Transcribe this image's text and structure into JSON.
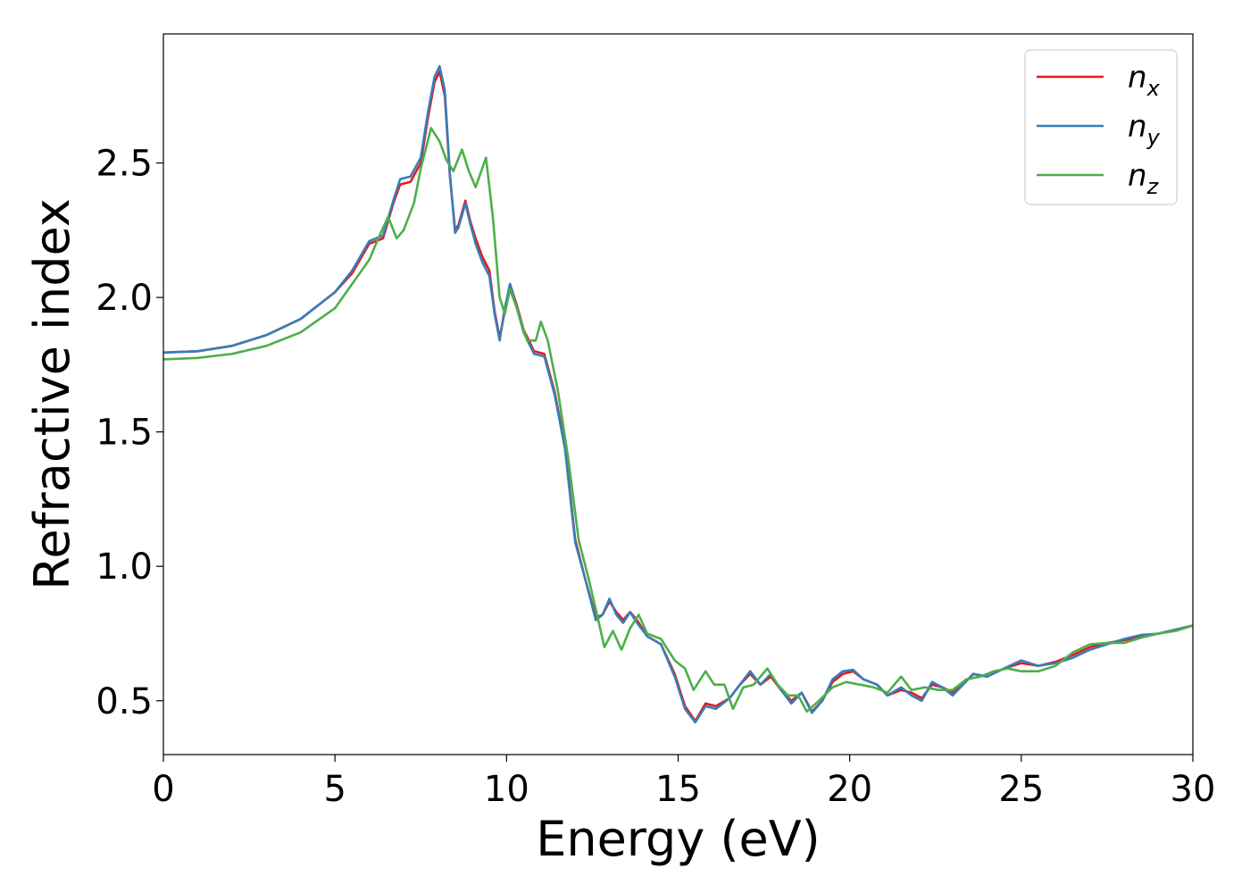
{
  "chart_data": {
    "type": "line",
    "xlabel": "Energy (eV)",
    "ylabel": "Refractive index",
    "xlim": [
      0,
      30
    ],
    "ylim": [
      0.3,
      2.98
    ],
    "xticks": [
      0,
      5,
      10,
      15,
      20,
      25,
      30
    ],
    "xtick_labels": [
      "0",
      "5",
      "10",
      "15",
      "20",
      "25",
      "30"
    ],
    "yticks": [
      0.5,
      1.0,
      1.5,
      2.0,
      2.5
    ],
    "ytick_labels": [
      "0.5",
      "1.0",
      "1.5",
      "2.0",
      "2.5"
    ],
    "grid": false,
    "legend_position": "top-right",
    "series": [
      {
        "name": "n",
        "subscript": "x",
        "color": "#e41a1c",
        "points": [
          [
            0,
            1.795
          ],
          [
            1,
            1.8
          ],
          [
            2,
            1.82
          ],
          [
            3,
            1.86
          ],
          [
            4,
            1.92
          ],
          [
            5,
            2.02
          ],
          [
            5.5,
            2.09
          ],
          [
            6,
            2.2
          ],
          [
            6.4,
            2.22
          ],
          [
            6.7,
            2.35
          ],
          [
            6.9,
            2.42
          ],
          [
            7.2,
            2.43
          ],
          [
            7.5,
            2.5
          ],
          [
            7.7,
            2.66
          ],
          [
            7.9,
            2.8
          ],
          [
            8.05,
            2.84
          ],
          [
            8.2,
            2.75
          ],
          [
            8.35,
            2.45
          ],
          [
            8.5,
            2.25
          ],
          [
            8.6,
            2.27
          ],
          [
            8.8,
            2.36
          ],
          [
            8.95,
            2.28
          ],
          [
            9.1,
            2.22
          ],
          [
            9.3,
            2.15
          ],
          [
            9.5,
            2.1
          ],
          [
            9.65,
            1.95
          ],
          [
            9.8,
            1.85
          ],
          [
            9.95,
            1.95
          ],
          [
            10.1,
            2.05
          ],
          [
            10.3,
            1.97
          ],
          [
            10.5,
            1.88
          ],
          [
            10.8,
            1.8
          ],
          [
            11.1,
            1.79
          ],
          [
            11.4,
            1.65
          ],
          [
            11.7,
            1.45
          ],
          [
            12.0,
            1.1
          ],
          [
            12.3,
            0.95
          ],
          [
            12.6,
            0.81
          ],
          [
            12.8,
            0.82
          ],
          [
            13.0,
            0.87
          ],
          [
            13.2,
            0.83
          ],
          [
            13.4,
            0.8
          ],
          [
            13.6,
            0.83
          ],
          [
            13.8,
            0.8
          ],
          [
            14.1,
            0.74
          ],
          [
            14.5,
            0.71
          ],
          [
            14.9,
            0.6
          ],
          [
            15.2,
            0.48
          ],
          [
            15.5,
            0.425
          ],
          [
            15.8,
            0.49
          ],
          [
            16.1,
            0.48
          ],
          [
            16.5,
            0.51
          ],
          [
            16.8,
            0.56
          ],
          [
            17.1,
            0.6
          ],
          [
            17.4,
            0.56
          ],
          [
            17.7,
            0.59
          ],
          [
            18.0,
            0.54
          ],
          [
            18.3,
            0.5
          ],
          [
            18.6,
            0.53
          ],
          [
            18.9,
            0.46
          ],
          [
            19.2,
            0.5
          ],
          [
            19.5,
            0.57
          ],
          [
            19.8,
            0.6
          ],
          [
            20.1,
            0.61
          ],
          [
            20.4,
            0.58
          ],
          [
            20.8,
            0.56
          ],
          [
            21.1,
            0.52
          ],
          [
            21.5,
            0.54
          ],
          [
            21.8,
            0.53
          ],
          [
            22.1,
            0.51
          ],
          [
            22.4,
            0.56
          ],
          [
            22.7,
            0.55
          ],
          [
            23.0,
            0.53
          ],
          [
            23.3,
            0.56
          ],
          [
            23.6,
            0.6
          ],
          [
            24.0,
            0.59
          ],
          [
            24.5,
            0.62
          ],
          [
            25.0,
            0.64
          ],
          [
            25.5,
            0.63
          ],
          [
            26.0,
            0.645
          ],
          [
            26.5,
            0.67
          ],
          [
            27.0,
            0.7
          ],
          [
            27.5,
            0.715
          ],
          [
            28.0,
            0.725
          ],
          [
            28.5,
            0.74
          ],
          [
            29.0,
            0.75
          ],
          [
            29.5,
            0.765
          ],
          [
            30.0,
            0.78
          ]
        ]
      },
      {
        "name": "n",
        "subscript": "y",
        "color": "#377eb8",
        "points": [
          [
            0,
            1.795
          ],
          [
            1,
            1.8
          ],
          [
            2,
            1.82
          ],
          [
            3,
            1.86
          ],
          [
            4,
            1.92
          ],
          [
            5,
            2.02
          ],
          [
            5.5,
            2.1
          ],
          [
            6,
            2.21
          ],
          [
            6.4,
            2.23
          ],
          [
            6.7,
            2.36
          ],
          [
            6.9,
            2.44
          ],
          [
            7.2,
            2.45
          ],
          [
            7.5,
            2.52
          ],
          [
            7.7,
            2.68
          ],
          [
            7.9,
            2.82
          ],
          [
            8.05,
            2.86
          ],
          [
            8.2,
            2.77
          ],
          [
            8.35,
            2.46
          ],
          [
            8.5,
            2.24
          ],
          [
            8.6,
            2.26
          ],
          [
            8.8,
            2.35
          ],
          [
            8.95,
            2.27
          ],
          [
            9.1,
            2.2
          ],
          [
            9.3,
            2.13
          ],
          [
            9.5,
            2.08
          ],
          [
            9.65,
            1.94
          ],
          [
            9.8,
            1.84
          ],
          [
            9.95,
            1.96
          ],
          [
            10.1,
            2.05
          ],
          [
            10.3,
            1.96
          ],
          [
            10.5,
            1.87
          ],
          [
            10.8,
            1.79
          ],
          [
            11.1,
            1.78
          ],
          [
            11.4,
            1.64
          ],
          [
            11.7,
            1.44
          ],
          [
            12.0,
            1.09
          ],
          [
            12.3,
            0.95
          ],
          [
            12.6,
            0.8
          ],
          [
            12.8,
            0.82
          ],
          [
            13.0,
            0.88
          ],
          [
            13.2,
            0.82
          ],
          [
            13.4,
            0.79
          ],
          [
            13.6,
            0.83
          ],
          [
            13.8,
            0.79
          ],
          [
            14.1,
            0.74
          ],
          [
            14.5,
            0.71
          ],
          [
            14.9,
            0.59
          ],
          [
            15.2,
            0.47
          ],
          [
            15.5,
            0.42
          ],
          [
            15.8,
            0.48
          ],
          [
            16.1,
            0.47
          ],
          [
            16.5,
            0.51
          ],
          [
            16.8,
            0.56
          ],
          [
            17.1,
            0.61
          ],
          [
            17.4,
            0.56
          ],
          [
            17.7,
            0.6
          ],
          [
            18.0,
            0.54
          ],
          [
            18.3,
            0.49
          ],
          [
            18.6,
            0.53
          ],
          [
            18.9,
            0.455
          ],
          [
            19.2,
            0.5
          ],
          [
            19.5,
            0.58
          ],
          [
            19.8,
            0.61
          ],
          [
            20.1,
            0.615
          ],
          [
            20.4,
            0.58
          ],
          [
            20.8,
            0.56
          ],
          [
            21.1,
            0.52
          ],
          [
            21.5,
            0.55
          ],
          [
            21.8,
            0.52
          ],
          [
            22.1,
            0.5
          ],
          [
            22.4,
            0.57
          ],
          [
            22.7,
            0.55
          ],
          [
            23.0,
            0.52
          ],
          [
            23.3,
            0.56
          ],
          [
            23.6,
            0.6
          ],
          [
            24.0,
            0.59
          ],
          [
            24.5,
            0.62
          ],
          [
            25.0,
            0.65
          ],
          [
            25.5,
            0.63
          ],
          [
            26.0,
            0.64
          ],
          [
            26.5,
            0.66
          ],
          [
            27.0,
            0.69
          ],
          [
            27.5,
            0.71
          ],
          [
            28.0,
            0.73
          ],
          [
            28.5,
            0.745
          ],
          [
            29.0,
            0.75
          ],
          [
            29.5,
            0.765
          ],
          [
            30.0,
            0.78
          ]
        ]
      },
      {
        "name": "n",
        "subscript": "z",
        "color": "#4daf4a",
        "points": [
          [
            0,
            1.77
          ],
          [
            1,
            1.775
          ],
          [
            2,
            1.79
          ],
          [
            3,
            1.82
          ],
          [
            4,
            1.87
          ],
          [
            5,
            1.96
          ],
          [
            5.5,
            2.05
          ],
          [
            6,
            2.14
          ],
          [
            6.3,
            2.23
          ],
          [
            6.55,
            2.3
          ],
          [
            6.8,
            2.22
          ],
          [
            7.0,
            2.25
          ],
          [
            7.3,
            2.35
          ],
          [
            7.5,
            2.48
          ],
          [
            7.8,
            2.63
          ],
          [
            8.05,
            2.58
          ],
          [
            8.25,
            2.51
          ],
          [
            8.45,
            2.47
          ],
          [
            8.7,
            2.55
          ],
          [
            8.9,
            2.47
          ],
          [
            9.1,
            2.41
          ],
          [
            9.4,
            2.52
          ],
          [
            9.6,
            2.3
          ],
          [
            9.8,
            2.0
          ],
          [
            9.95,
            1.94
          ],
          [
            10.1,
            2.03
          ],
          [
            10.3,
            1.96
          ],
          [
            10.6,
            1.84
          ],
          [
            10.85,
            1.84
          ],
          [
            11.0,
            1.91
          ],
          [
            11.2,
            1.84
          ],
          [
            11.5,
            1.65
          ],
          [
            11.8,
            1.4
          ],
          [
            12.1,
            1.1
          ],
          [
            12.4,
            0.95
          ],
          [
            12.6,
            0.84
          ],
          [
            12.85,
            0.7
          ],
          [
            13.1,
            0.76
          ],
          [
            13.35,
            0.69
          ],
          [
            13.6,
            0.77
          ],
          [
            13.85,
            0.82
          ],
          [
            14.1,
            0.75
          ],
          [
            14.5,
            0.73
          ],
          [
            14.9,
            0.65
          ],
          [
            15.2,
            0.62
          ],
          [
            15.45,
            0.54
          ],
          [
            15.8,
            0.61
          ],
          [
            16.05,
            0.56
          ],
          [
            16.35,
            0.56
          ],
          [
            16.6,
            0.47
          ],
          [
            16.9,
            0.55
          ],
          [
            17.2,
            0.56
          ],
          [
            17.6,
            0.62
          ],
          [
            17.9,
            0.56
          ],
          [
            18.2,
            0.52
          ],
          [
            18.5,
            0.52
          ],
          [
            18.75,
            0.46
          ],
          [
            19.1,
            0.5
          ],
          [
            19.5,
            0.55
          ],
          [
            19.9,
            0.57
          ],
          [
            20.3,
            0.56
          ],
          [
            20.7,
            0.55
          ],
          [
            21.1,
            0.53
          ],
          [
            21.5,
            0.59
          ],
          [
            21.8,
            0.54
          ],
          [
            22.2,
            0.55
          ],
          [
            22.6,
            0.54
          ],
          [
            23.0,
            0.54
          ],
          [
            23.4,
            0.58
          ],
          [
            23.8,
            0.59
          ],
          [
            24.2,
            0.61
          ],
          [
            24.6,
            0.62
          ],
          [
            25.0,
            0.61
          ],
          [
            25.5,
            0.61
          ],
          [
            26.0,
            0.63
          ],
          [
            26.5,
            0.68
          ],
          [
            27.0,
            0.71
          ],
          [
            27.5,
            0.715
          ],
          [
            28.0,
            0.715
          ],
          [
            28.5,
            0.735
          ],
          [
            29.0,
            0.75
          ],
          [
            29.5,
            0.76
          ],
          [
            30.0,
            0.78
          ]
        ]
      }
    ]
  }
}
